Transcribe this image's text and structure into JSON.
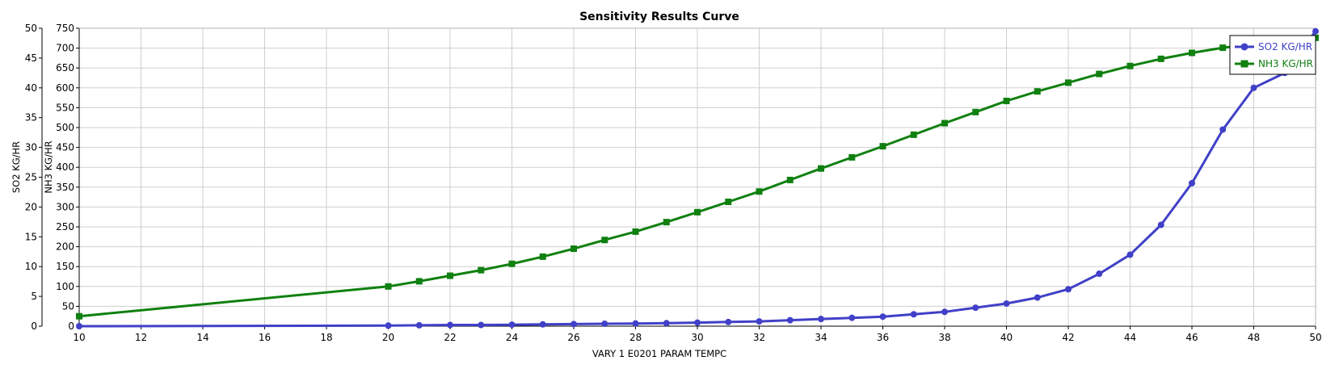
{
  "chart_data": {
    "type": "line",
    "title": "Sensitivity Results Curve",
    "xlabel": "VARY   1 E0201 PARAM TEMPC",
    "xlim": [
      10,
      50
    ],
    "x_ticks": [
      10,
      12,
      14,
      16,
      18,
      20,
      22,
      24,
      26,
      28,
      30,
      32,
      34,
      36,
      38,
      40,
      42,
      44,
      46,
      48,
      50
    ],
    "grid": true,
    "legend_position": "top-right",
    "y_axes": [
      {
        "label": "SO2 KG/HR",
        "lim": [
          0,
          50
        ],
        "ticks": [
          0,
          5,
          10,
          15,
          20,
          25,
          30,
          35,
          40,
          45,
          50
        ]
      },
      {
        "label": "NH3 KG/HR",
        "lim": [
          0,
          750
        ],
        "ticks": [
          0,
          50,
          100,
          150,
          200,
          250,
          300,
          350,
          400,
          450,
          500,
          550,
          600,
          650,
          700,
          750
        ]
      }
    ],
    "series": [
      {
        "name": "SO2 KG/HR",
        "axis": 0,
        "color": "#4040c8",
        "marker": "circle",
        "x": [
          10,
          20,
          21,
          22,
          23,
          24,
          25,
          26,
          27,
          28,
          29,
          30,
          31,
          32,
          33,
          34,
          35,
          36,
          37,
          38,
          39,
          40,
          41,
          42,
          43,
          44,
          45,
          46,
          47,
          48,
          49,
          50
        ],
        "y": [
          0,
          0.1,
          0.15,
          0.2,
          0.2,
          0.25,
          0.3,
          0.35,
          0.4,
          0.45,
          0.5,
          0.6,
          0.7,
          0.8,
          1.0,
          1.2,
          1.4,
          1.6,
          2.0,
          2.4,
          3.1,
          3.8,
          4.8,
          6.2,
          8.8,
          12.0,
          17.0,
          24.0,
          33.0,
          40.0,
          42.5,
          49.5
        ]
      },
      {
        "name": "NH3 KG/HR",
        "axis": 1,
        "color": "#108010",
        "marker": "square",
        "x": [
          10,
          20,
          21,
          22,
          23,
          24,
          25,
          26,
          27,
          28,
          29,
          30,
          31,
          32,
          33,
          34,
          35,
          36,
          37,
          38,
          39,
          40,
          41,
          42,
          43,
          44,
          45,
          46,
          47,
          48,
          49,
          50
        ],
        "y": [
          25,
          100,
          113,
          127,
          141,
          157,
          175,
          195,
          217,
          238,
          262,
          287,
          313,
          339,
          368,
          397,
          425,
          453,
          482,
          511,
          539,
          567,
          591,
          613,
          635,
          655,
          673,
          688,
          701,
          710,
          718,
          726
        ]
      }
    ]
  }
}
